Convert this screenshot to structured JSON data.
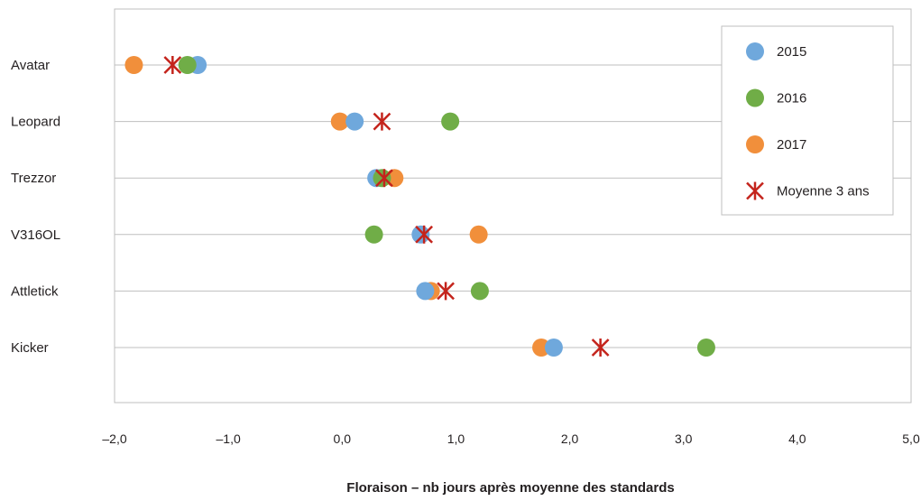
{
  "chart_data": {
    "type": "scatter",
    "orientation": "horizontal-dot-plot",
    "categories": [
      "Avatar",
      "Leopard",
      "Trezzor",
      "V316OL",
      "Attletick",
      "Kicker"
    ],
    "xlabel": "Floraison – nb jours après moyenne des standards",
    "xlim": [
      -2.0,
      5.0
    ],
    "x_ticks": [
      -2.0,
      -1.0,
      0.0,
      1.0,
      2.0,
      3.0,
      4.0,
      5.0
    ],
    "x_tick_labels": [
      "–2,0",
      "–1,0",
      "0,0",
      "1,0",
      "2,0",
      "3,0",
      "4,0",
      "5,0"
    ],
    "grid": "horizontal category lines",
    "legend_position": "top-right",
    "series": [
      {
        "name": "2015",
        "marker": "circle",
        "color": "#6fa8dc",
        "values": [
          -1.27,
          0.11,
          0.3,
          0.69,
          0.73,
          1.86
        ]
      },
      {
        "name": "2016",
        "marker": "circle",
        "color": "#70ad47",
        "values": [
          -1.36,
          0.95,
          0.35,
          0.28,
          1.21,
          3.2
        ]
      },
      {
        "name": "2017",
        "marker": "circle",
        "color": "#f18f3b",
        "values": [
          -1.83,
          -0.02,
          0.46,
          1.2,
          0.78,
          1.75
        ]
      },
      {
        "name": "Moyenne 3 ans",
        "marker": "asterisk",
        "color": "#c4241c",
        "values": [
          -1.49,
          0.35,
          0.37,
          0.72,
          0.91,
          2.27
        ]
      }
    ]
  }
}
